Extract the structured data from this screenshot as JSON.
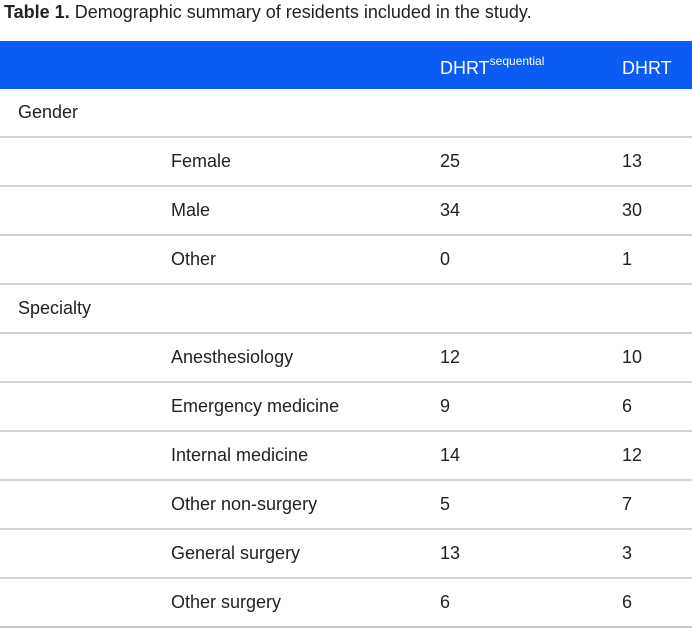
{
  "caption": {
    "label": "Table 1.",
    "text": "Demographic summary of residents included in the study."
  },
  "header": {
    "seq_base": "DHRT",
    "seq_sup": "sequential",
    "dhrt": "DHRT"
  },
  "groups": [
    {
      "name": "Gender",
      "rows": [
        {
          "category": "Female",
          "seq": "25",
          "dhrt": "13"
        },
        {
          "category": "Male",
          "seq": "34",
          "dhrt": "30"
        },
        {
          "category": "Other",
          "seq": "0",
          "dhrt": "1"
        }
      ]
    },
    {
      "name": "Specialty",
      "rows": [
        {
          "category": "Anesthesiology",
          "seq": "12",
          "dhrt": "10"
        },
        {
          "category": "Emergency medicine",
          "seq": "9",
          "dhrt": "6"
        },
        {
          "category": "Internal medicine",
          "seq": "14",
          "dhrt": "12"
        },
        {
          "category": "Other non-surgery",
          "seq": "5",
          "dhrt": "7"
        },
        {
          "category": "General surgery",
          "seq": "13",
          "dhrt": "3"
        },
        {
          "category": "Other surgery",
          "seq": "6",
          "dhrt": "6"
        }
      ]
    }
  ]
}
